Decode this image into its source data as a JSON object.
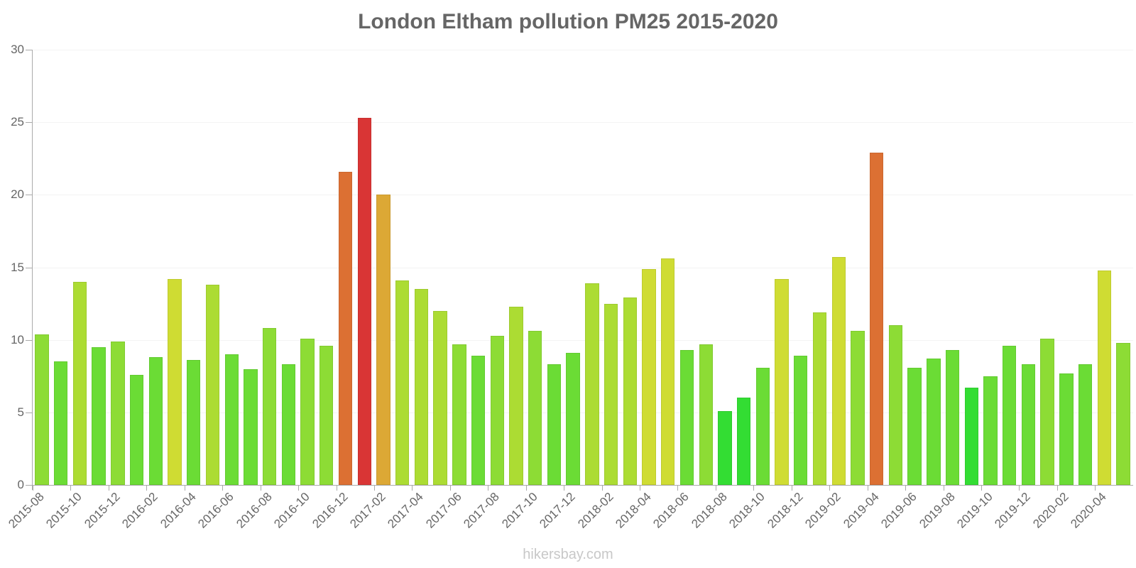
{
  "chart_data": {
    "type": "bar",
    "title": "London Eltham pollution PM25 2015-2020",
    "xlabel": "",
    "ylabel": "",
    "ylim": [
      0,
      30
    ],
    "yticks": [
      0,
      5,
      10,
      15,
      20,
      25,
      30
    ],
    "grid": true,
    "legend": null,
    "categories": [
      "2015-08",
      "2015-09",
      "2015-10",
      "2015-11",
      "2015-12",
      "2016-01",
      "2016-02",
      "2016-03",
      "2016-04",
      "2016-05",
      "2016-06",
      "2016-07",
      "2016-08",
      "2016-09",
      "2016-10",
      "2016-11",
      "2016-12",
      "2017-01",
      "2017-02",
      "2017-03",
      "2017-04",
      "2017-05",
      "2017-06",
      "2017-07",
      "2017-08",
      "2017-09",
      "2017-10",
      "2017-11",
      "2017-12",
      "2018-01",
      "2018-02",
      "2018-03",
      "2018-04",
      "2018-05",
      "2018-06",
      "2018-07",
      "2018-08",
      "2018-09",
      "2018-10",
      "2018-11",
      "2018-12",
      "2019-01",
      "2019-02",
      "2019-03",
      "2019-04",
      "2019-05",
      "2019-06",
      "2019-07",
      "2019-08",
      "2019-09",
      "2019-10",
      "2019-11",
      "2019-12",
      "2020-01",
      "2020-02",
      "2020-03",
      "2020-04",
      "2020-05"
    ],
    "visible_xtick_labels": [
      "2015-08",
      "2015-10",
      "2015-12",
      "2016-02",
      "2016-04",
      "2016-06",
      "2016-08",
      "2016-10",
      "2016-12",
      "2017-02",
      "2017-04",
      "2017-06",
      "2017-08",
      "2017-10",
      "2017-12",
      "2018-02",
      "2018-04",
      "2018-06",
      "2018-08",
      "2018-10",
      "2018-12",
      "2019-02",
      "2019-04",
      "2019-06",
      "2019-08",
      "2019-10",
      "2019-12",
      "2020-02",
      "2020-04"
    ],
    "values": [
      10.4,
      8.5,
      14.0,
      9.5,
      9.9,
      7.6,
      8.8,
      14.2,
      8.6,
      13.8,
      9.0,
      8.0,
      10.8,
      8.3,
      10.1,
      9.6,
      21.6,
      25.3,
      20.0,
      14.1,
      13.5,
      12.0,
      9.7,
      8.9,
      10.3,
      12.3,
      10.6,
      8.3,
      9.1,
      13.9,
      12.5,
      12.9,
      14.9,
      15.6,
      9.3,
      9.7,
      5.1,
      6.0,
      8.1,
      14.2,
      8.9,
      11.9,
      15.7,
      10.6,
      22.9,
      11.0,
      8.1,
      8.7,
      9.3,
      6.7,
      7.5,
      9.6,
      8.3,
      10.1,
      7.7,
      8.3,
      14.8,
      9.8
    ],
    "colors": [
      "#8ddc35",
      "#6bdc35",
      "#acdc33",
      "#6bdc35",
      "#8ddc35",
      "#6bdc35",
      "#6bdc35",
      "#cfdc33",
      "#6bdc35",
      "#acdc33",
      "#6bdc35",
      "#6bdc35",
      "#8ddc35",
      "#6bdc35",
      "#8ddc35",
      "#8ddc35",
      "#dc7033",
      "#d93535",
      "#dca835",
      "#acdc33",
      "#acdc33",
      "#acdc33",
      "#8ddc35",
      "#6bdc35",
      "#8ddc35",
      "#acdc33",
      "#8ddc35",
      "#6bdc35",
      "#6bdc35",
      "#acdc33",
      "#acdc33",
      "#acdc33",
      "#cfdc33",
      "#cfdc33",
      "#6bdc35",
      "#8ddc35",
      "#33dd33",
      "#33dd33",
      "#6bdc35",
      "#cfdc33",
      "#6bdc35",
      "#acdc33",
      "#cfdc33",
      "#8ddc35",
      "#dc7033",
      "#8ddc35",
      "#6bdc35",
      "#6bdc35",
      "#6bdc35",
      "#33dd33",
      "#6bdc35",
      "#6bdc35",
      "#6bdc35",
      "#8ddc35",
      "#6bdc35",
      "#6bdc35",
      "#cfdc33",
      "#8ddc35"
    ]
  },
  "watermark": "hikersbay.com"
}
